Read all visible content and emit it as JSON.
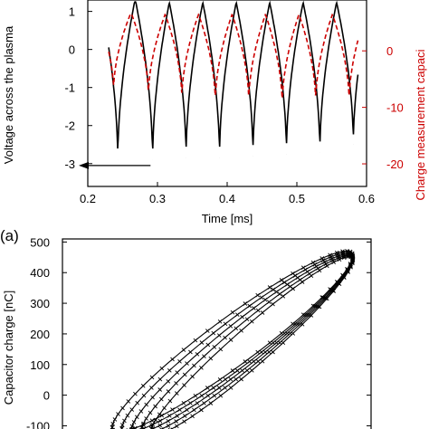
{
  "chart_data": [
    {
      "type": "line",
      "panel_label": "(a)",
      "xlabel": "Time [ms]",
      "ylabel_left": "Voltage across the plasma",
      "ylabel_right": "Charge measurement capaci",
      "xlim": [
        0.2,
        0.6
      ],
      "ylim_left": [
        -3.6,
        1.3
      ],
      "ylim_right": [
        -24,
        9
      ],
      "x_ticks": [
        "0.2",
        "0.3",
        "0.4",
        "0.5",
        "0.6"
      ],
      "y_ticks_left": [
        "1",
        "0",
        "-1",
        "-2",
        "-3"
      ],
      "y_ticks_right": [
        "0",
        "-10",
        "-20"
      ],
      "series": [
        {
          "axis": "left",
          "color": "#000000",
          "style": "solid",
          "minima_x": [
            0.243,
            0.293,
            0.341,
            0.389,
            0.437,
            0.485,
            0.533,
            0.581
          ],
          "minima_y": [
            -2.9,
            -2.9,
            -2.85,
            -2.85,
            -2.8,
            -2.75,
            -2.7,
            -2.5
          ]
        },
        {
          "axis": "right",
          "color": "#cc0000",
          "style": "dashed",
          "minima_x": [
            0.237,
            0.287,
            0.335,
            0.383,
            0.431,
            0.479,
            0.527,
            0.575
          ],
          "minima_y": [
            -7,
            -8,
            -8.5,
            -9,
            -9,
            -9.5,
            -9,
            -9
          ]
        }
      ],
      "annotation": {
        "type": "arrow",
        "from_x": 0.29,
        "to_x": 0.2,
        "y": -3.05,
        "color": "#000000"
      }
    },
    {
      "type": "scatter",
      "marker": "x",
      "color": "#000000",
      "ylabel": "Capacitor charge [nC]",
      "y_ticks": [
        "500",
        "400",
        "300",
        "200",
        "100",
        "0",
        "-100"
      ],
      "ylim": [
        -140,
        510
      ],
      "loops": [
        {
          "upper_start": [
            -300,
            -90
          ],
          "upper_end": [
            300,
            455
          ],
          "lower_start": [
            -300,
            -120
          ],
          "lower_end": [
            300,
            455
          ]
        }
      ]
    }
  ]
}
